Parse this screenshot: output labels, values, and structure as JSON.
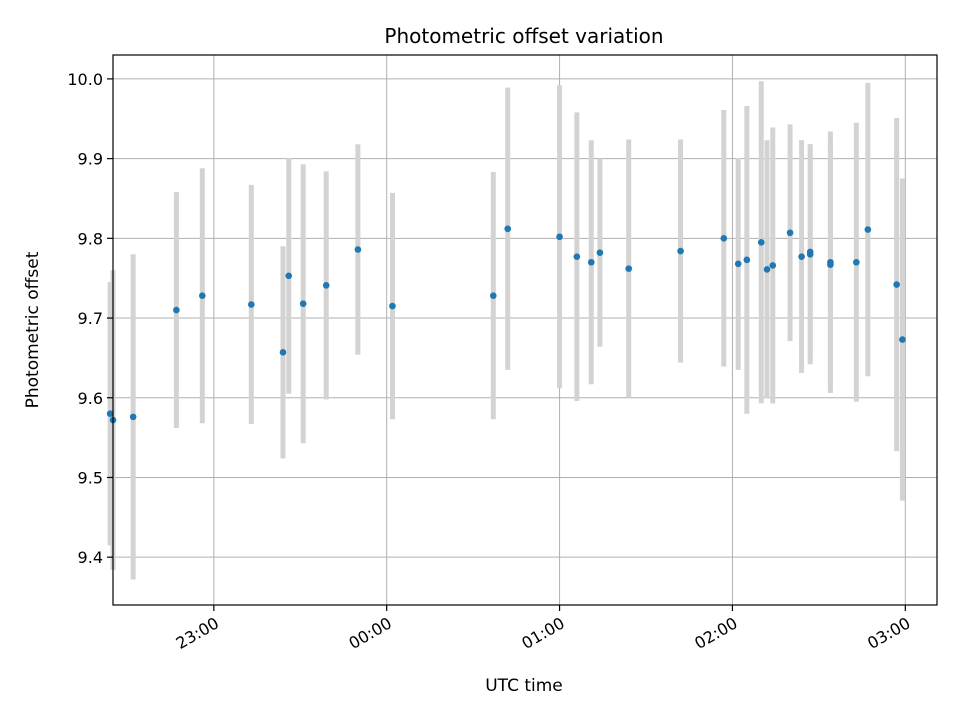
{
  "chart_data": {
    "type": "scatter",
    "title": "Photometric offset variation",
    "xlabel": "UTC time",
    "ylabel": "Photometric offset",
    "x_axis": {
      "kind": "time",
      "range": [
        "22:25",
        "03:11"
      ]
    },
    "ylim": [
      9.34,
      10.03
    ],
    "xticks": [
      "23:00",
      "00:00",
      "01:00",
      "02:00",
      "03:00"
    ],
    "yticks": [
      9.4,
      9.5,
      9.6,
      9.7,
      9.8,
      9.9,
      10.0
    ],
    "grid": true,
    "colors": {
      "marker": "#1f77b4",
      "errorbar": "#d3d3d3",
      "grid": "#b0b0b0"
    },
    "points": [
      {
        "x": "22:24",
        "y": 9.58,
        "yerr": 0.165
      },
      {
        "x": "22:25",
        "y": 9.572,
        "yerr": 0.188
      },
      {
        "x": "22:32",
        "y": 9.576,
        "yerr": 0.204
      },
      {
        "x": "22:47",
        "y": 9.71,
        "yerr": 0.148
      },
      {
        "x": "22:56",
        "y": 9.728,
        "yerr": 0.16
      },
      {
        "x": "23:13",
        "y": 9.717,
        "yerr": 0.15
      },
      {
        "x": "23:24",
        "y": 9.657,
        "yerr": 0.133
      },
      {
        "x": "23:26",
        "y": 9.753,
        "yerr": 0.148
      },
      {
        "x": "23:31",
        "y": 9.718,
        "yerr": 0.175
      },
      {
        "x": "23:39",
        "y": 9.741,
        "yerr": 0.143
      },
      {
        "x": "23:50",
        "y": 9.786,
        "yerr": 0.132
      },
      {
        "x": "00:02",
        "y": 9.715,
        "yerr": 0.142
      },
      {
        "x": "00:37",
        "y": 9.728,
        "yerr": 0.155
      },
      {
        "x": "00:42",
        "y": 9.812,
        "yerr": 0.177
      },
      {
        "x": "01:00",
        "y": 9.802,
        "yerr": 0.19
      },
      {
        "x": "01:06",
        "y": 9.777,
        "yerr": 0.181
      },
      {
        "x": "01:11",
        "y": 9.77,
        "yerr": 0.153
      },
      {
        "x": "01:14",
        "y": 9.782,
        "yerr": 0.118
      },
      {
        "x": "01:24",
        "y": 9.762,
        "yerr": 0.162
      },
      {
        "x": "01:42",
        "y": 9.784,
        "yerr": 0.14
      },
      {
        "x": "01:57",
        "y": 9.8,
        "yerr": 0.161
      },
      {
        "x": "02:02",
        "y": 9.768,
        "yerr": 0.133
      },
      {
        "x": "02:05",
        "y": 9.773,
        "yerr": 0.193
      },
      {
        "x": "02:10",
        "y": 9.795,
        "yerr": 0.202
      },
      {
        "x": "02:12",
        "y": 9.761,
        "yerr": 0.162
      },
      {
        "x": "02:14",
        "y": 9.766,
        "yerr": 0.173
      },
      {
        "x": "02:20",
        "y": 9.807,
        "yerr": 0.136
      },
      {
        "x": "02:24",
        "y": 9.777,
        "yerr": 0.146
      },
      {
        "x": "02:27",
        "y": 9.78,
        "yerr": 0.138
      },
      {
        "x": "02:27",
        "y": 9.783,
        "yerr": 0.135
      },
      {
        "x": "02:34",
        "y": 9.77,
        "yerr": 0.164
      },
      {
        "x": "02:34",
        "y": 9.767,
        "yerr": 0.155
      },
      {
        "x": "02:43",
        "y": 9.77,
        "yerr": 0.175
      },
      {
        "x": "02:47",
        "y": 9.811,
        "yerr": 0.184
      },
      {
        "x": "02:57",
        "y": 9.742,
        "yerr": 0.209
      },
      {
        "x": "02:59",
        "y": 9.673,
        "yerr": 0.202
      }
    ]
  }
}
